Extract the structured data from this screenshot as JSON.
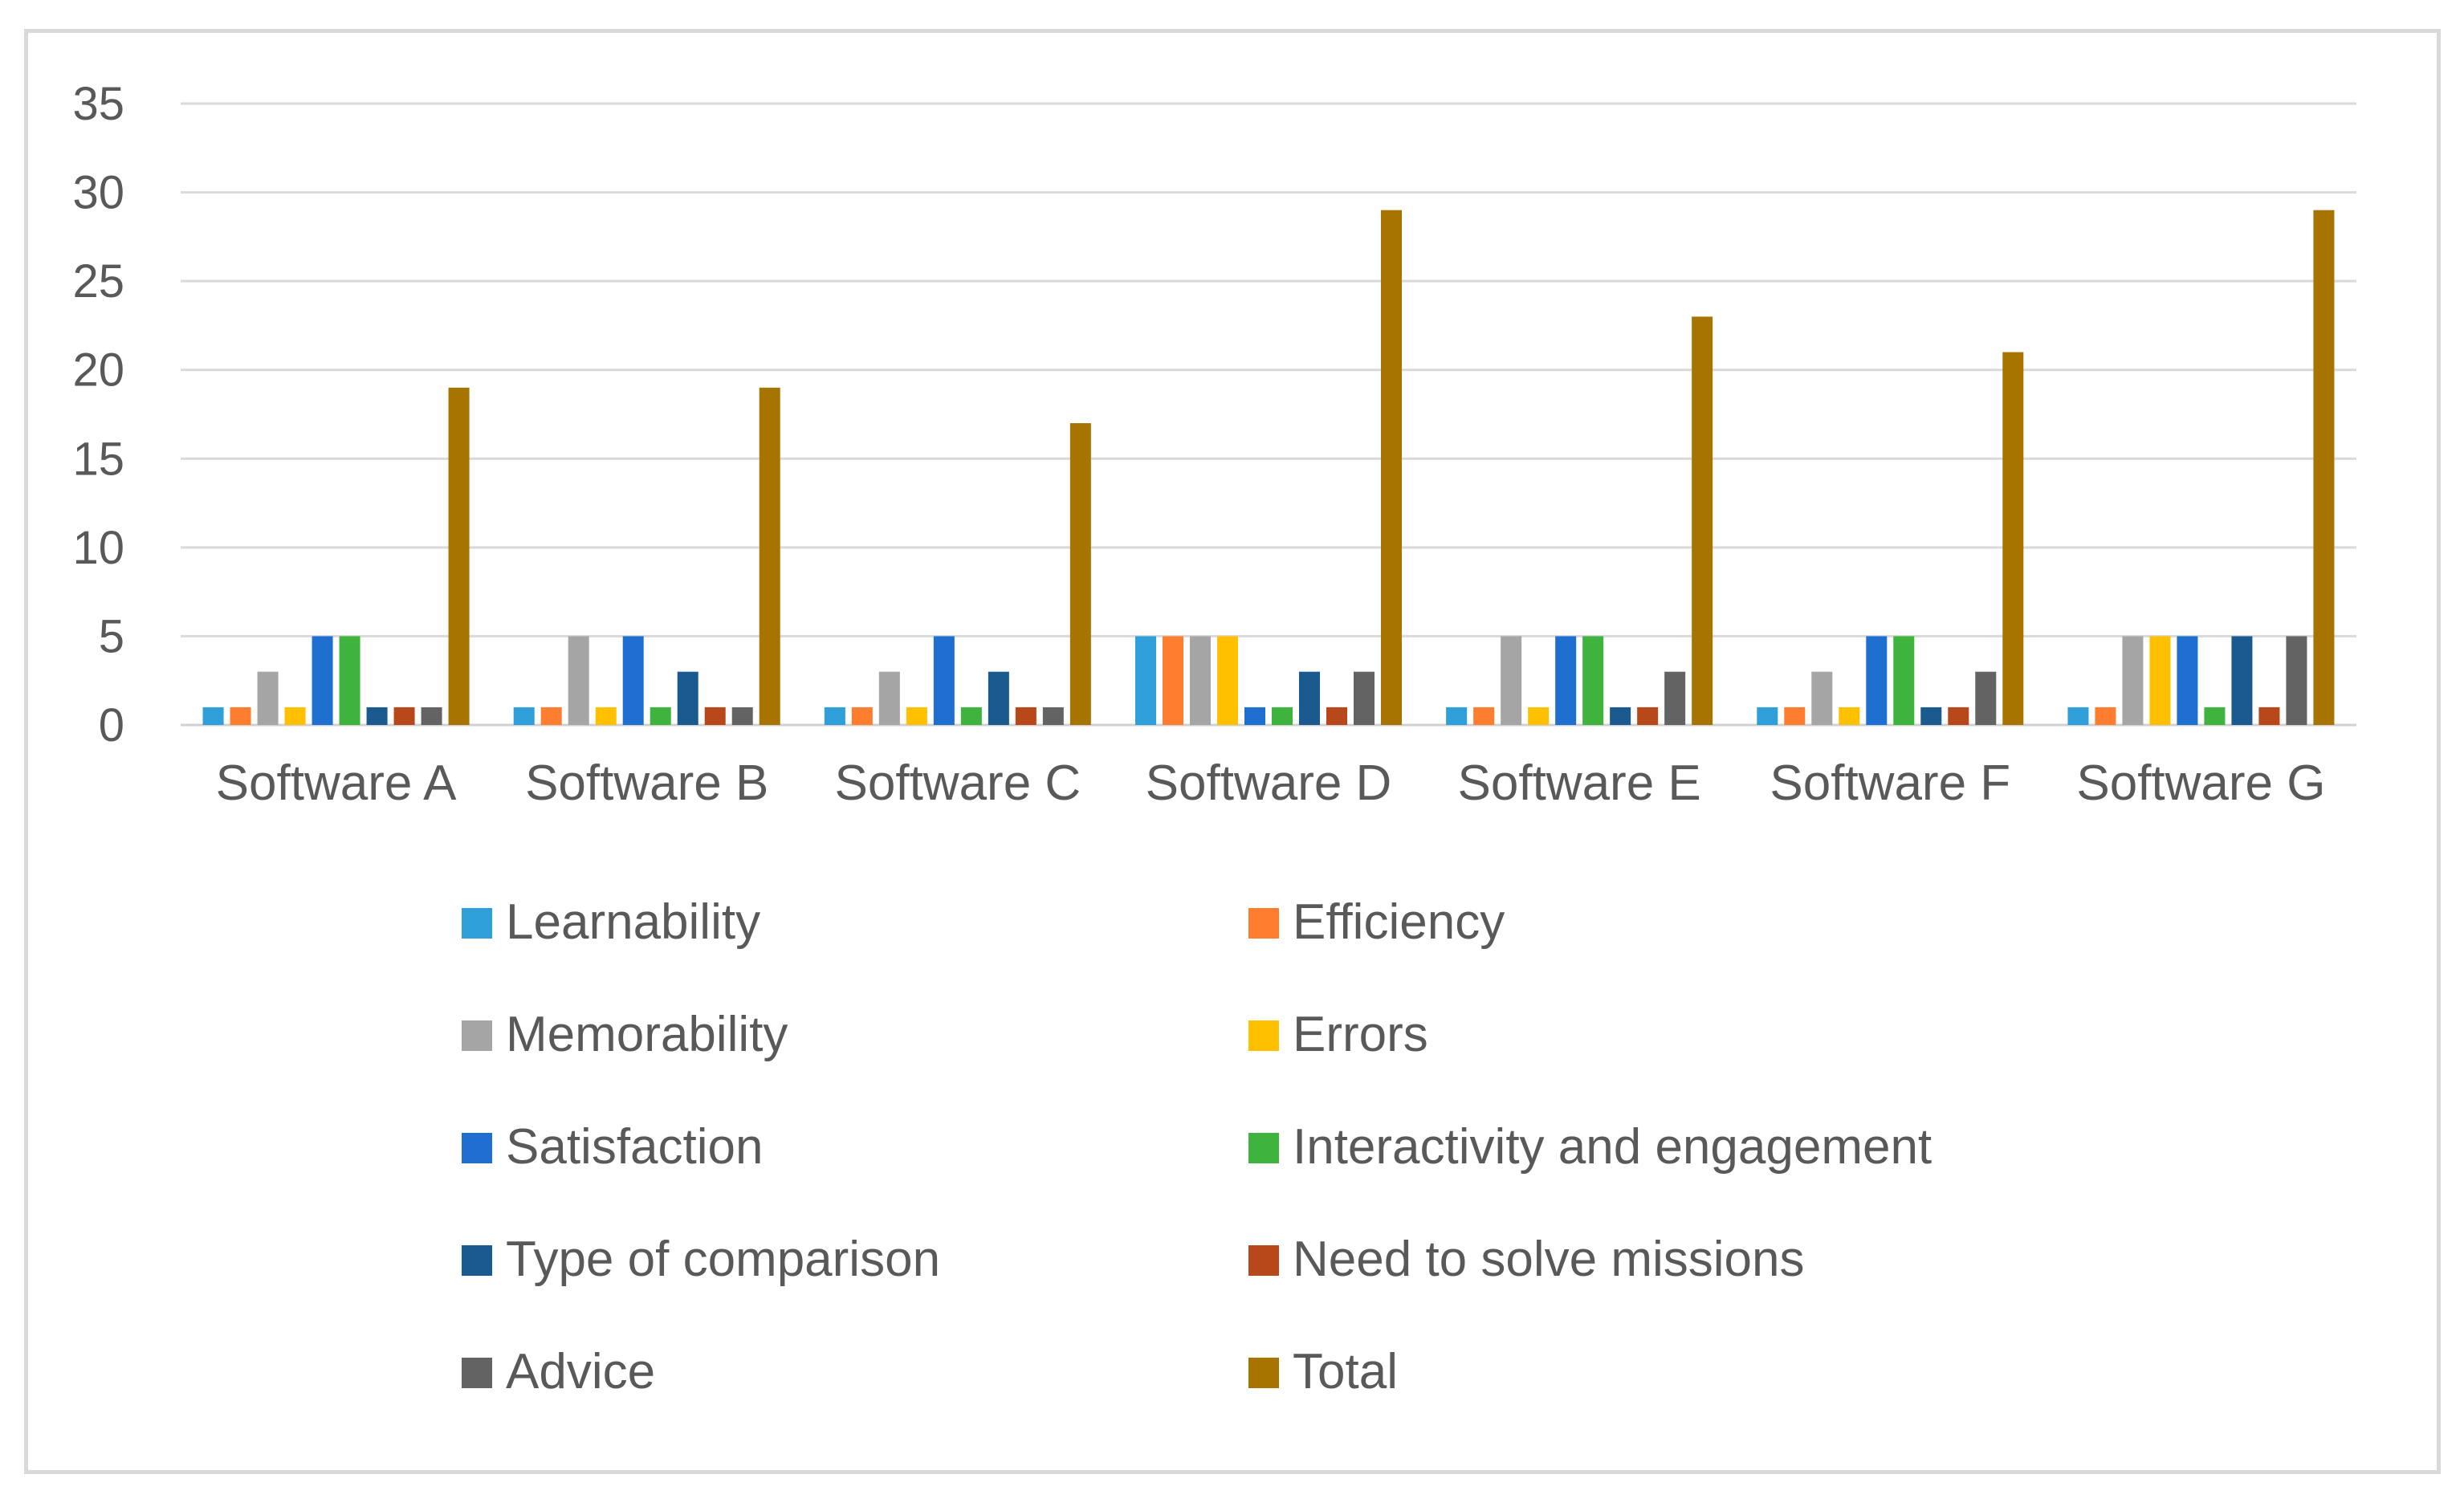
{
  "chart_data": {
    "type": "bar",
    "title": "",
    "xlabel": "",
    "ylabel": "",
    "ylim": [
      0,
      35
    ],
    "yticks": [
      0,
      5,
      10,
      15,
      20,
      25,
      30,
      35
    ],
    "grid": true,
    "legend_position": "bottom",
    "categories": [
      "Software A",
      "Software B",
      "Software C",
      "Software D",
      "Software E",
      "Software F",
      "Software G"
    ],
    "series": [
      {
        "name": "Learnability",
        "color": "#2e9fd9",
        "values": [
          1,
          1,
          1,
          5,
          1,
          1,
          1
        ]
      },
      {
        "name": "Efficiency",
        "color": "#ff7d2e",
        "values": [
          1,
          1,
          1,
          5,
          1,
          1,
          1
        ]
      },
      {
        "name": "Memorability",
        "color": "#a5a5a5",
        "values": [
          3,
          5,
          3,
          5,
          5,
          3,
          5
        ]
      },
      {
        "name": "Errors",
        "color": "#ffc000",
        "values": [
          1,
          1,
          1,
          5,
          1,
          1,
          5
        ]
      },
      {
        "name": "Satisfaction",
        "color": "#1f6fd1",
        "values": [
          5,
          5,
          5,
          1,
          5,
          5,
          5
        ]
      },
      {
        "name": "Interactivity and engagement",
        "color": "#3eb33e",
        "values": [
          5,
          1,
          1,
          1,
          5,
          5,
          1
        ]
      },
      {
        "name": "Type of comparison",
        "color": "#1a5a8e",
        "values": [
          1,
          3,
          3,
          3,
          1,
          1,
          5
        ]
      },
      {
        "name": "Need to solve missions",
        "color": "#b8471a",
        "values": [
          1,
          1,
          1,
          1,
          1,
          1,
          1
        ]
      },
      {
        "name": "Advice",
        "color": "#636363",
        "values": [
          1,
          1,
          1,
          3,
          3,
          3,
          5
        ]
      },
      {
        "name": "Total",
        "color": "#a87400",
        "values": [
          19,
          19,
          17,
          29,
          23,
          21,
          29
        ]
      }
    ]
  }
}
